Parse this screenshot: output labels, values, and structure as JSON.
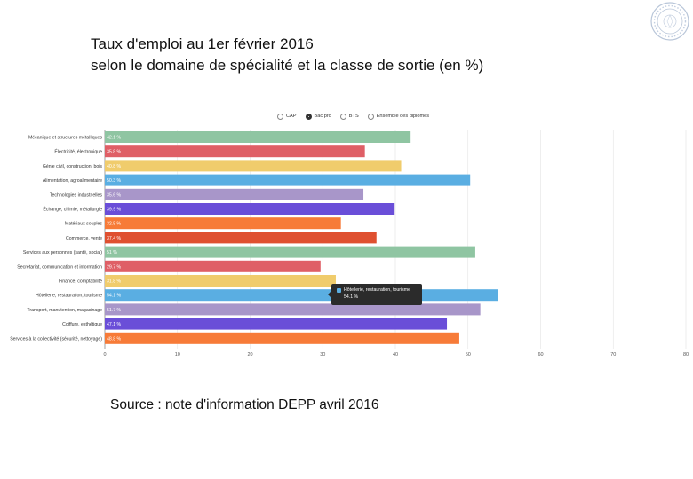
{
  "title": {
    "line1": "Taux d'emploi au 1er février 2016",
    "line2": "selon le domaine de spécialité et la classe de sortie (en %)"
  },
  "source": "Source : note d'information DEPP avril 2016",
  "legend": {
    "options": [
      {
        "label": "CAP",
        "selected": false
      },
      {
        "label": "Bac pro",
        "selected": true
      },
      {
        "label": "BTS",
        "selected": false
      },
      {
        "label": "Ensemble des diplômes",
        "selected": false
      }
    ]
  },
  "tooltip": {
    "category": "Hôtellerie, restauration, tourisme",
    "value": "54.1 %",
    "color": "#5aaee2"
  },
  "chart_data": {
    "type": "bar",
    "orientation": "horizontal",
    "categories": [
      "Mécanique et structures métalliques",
      "Électricité, électronique",
      "Génie civil, construction, bois",
      "Alimentation, agroalimentaire",
      "Technologies industrielles",
      "Échange, chimie, métallurgie",
      "Matériaux souples",
      "Commerce, vente",
      "Services aux personnes (santé, social)",
      "Secrétariat, communication et information",
      "Finance, comptabilité",
      "Hôtellerie, restauration, tourisme",
      "Transport, manutention, magasinage",
      "Coiffure, esthétique",
      "Services à la collectivité (sécurité, nettoyage)"
    ],
    "values": [
      42.1,
      35.8,
      40.8,
      50.3,
      35.6,
      39.9,
      32.5,
      37.4,
      51,
      29.7,
      31.8,
      54.1,
      51.7,
      47.1,
      48.8
    ],
    "value_labels": [
      "42.1 %",
      "35.8 %",
      "40.8 %",
      "50.3 %",
      "35.6 %",
      "39.9 %",
      "32.5 %",
      "37.4 %",
      "51 %",
      "29.7 %",
      "31.8 %",
      "54.1 %",
      "51.7 %",
      "47.1 %",
      "48.8 %"
    ],
    "colors": [
      "#8fc5a2",
      "#df5f66",
      "#f0cc6c",
      "#5aaee2",
      "#a896c9",
      "#6a4ed8",
      "#f77b38",
      "#df5030",
      "#8fc5a2",
      "#df5f66",
      "#f0cc6c",
      "#5aaee2",
      "#a896c9",
      "#6a4ed8",
      "#f77b38"
    ],
    "xlim": [
      0,
      80
    ],
    "xticks": [
      0,
      10,
      20,
      30,
      40,
      50,
      60,
      70,
      80
    ],
    "grid": true,
    "legend_position": "top"
  }
}
